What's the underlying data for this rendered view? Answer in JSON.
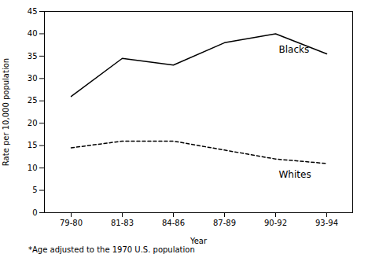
{
  "chart_data": {
    "type": "line",
    "categories": [
      "79-80",
      "81-83",
      "84-86",
      "87-89",
      "90-92",
      "93-94"
    ],
    "series": [
      {
        "name": "Blacks",
        "color": "#000000",
        "line_style": "solid",
        "values": [
          26.0,
          34.5,
          33.0,
          38.0,
          40.0,
          35.5
        ]
      },
      {
        "name": "Whites",
        "color": "#000000",
        "line_style": "dashed",
        "values": [
          14.5,
          16.0,
          16.0,
          14.0,
          12.0,
          11.0
        ]
      }
    ],
    "xlabel": "Year",
    "ylabel": "Rate per 10,000 population",
    "ylim": [
      0,
      45
    ],
    "yticks": [
      0,
      5,
      10,
      15,
      20,
      25,
      30,
      35,
      40,
      45
    ],
    "annotations": [
      "*Age adjusted to the 1970 U.S. population"
    ],
    "grid": false
  }
}
